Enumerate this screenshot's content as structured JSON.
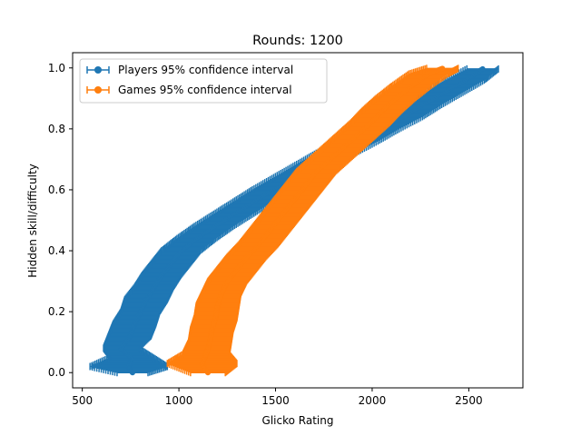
{
  "chart_data": {
    "type": "scatter",
    "title": "Rounds: 1200",
    "xlabel": "Glicko Rating",
    "ylabel": "Hidden skill/difficulty",
    "xlim": [
      450,
      2780
    ],
    "ylim": [
      -0.05,
      1.05
    ],
    "xticks": [
      500,
      1000,
      1500,
      2000,
      2500
    ],
    "yticks": [
      0.0,
      0.2,
      0.4,
      0.6,
      0.8,
      1.0
    ],
    "xtick_labels": [
      "500",
      "1000",
      "1500",
      "2000",
      "2500"
    ],
    "ytick_labels": [
      "0.0",
      "0.2",
      "0.4",
      "0.6",
      "0.8",
      "1.0"
    ],
    "grid": false,
    "legend_position": "top-left",
    "series": [
      {
        "name": "Players 95% confidence interval",
        "color": "#1f77b4",
        "marker": "circle",
        "error_bars": "horizontal",
        "points": [
          [
            760,
            0.0,
            80
          ],
          [
            740,
            0.02,
            200
          ],
          [
            755,
            0.05,
            110
          ],
          [
            700,
            0.08,
            90
          ],
          [
            745,
            0.12,
            110
          ],
          [
            770,
            0.16,
            110
          ],
          [
            800,
            0.2,
            100
          ],
          [
            830,
            0.24,
            110
          ],
          [
            870,
            0.28,
            100
          ],
          [
            910,
            0.32,
            100
          ],
          [
            960,
            0.36,
            100
          ],
          [
            1010,
            0.4,
            100
          ],
          [
            1090,
            0.44,
            100
          ],
          [
            1180,
            0.48,
            100
          ],
          [
            1280,
            0.52,
            100
          ],
          [
            1380,
            0.56,
            100
          ],
          [
            1480,
            0.6,
            100
          ],
          [
            1590,
            0.64,
            100
          ],
          [
            1700,
            0.68,
            100
          ],
          [
            1810,
            0.72,
            100
          ],
          [
            1930,
            0.76,
            100
          ],
          [
            2040,
            0.8,
            100
          ],
          [
            2160,
            0.84,
            100
          ],
          [
            2260,
            0.88,
            100
          ],
          [
            2370,
            0.92,
            100
          ],
          [
            2480,
            0.96,
            100
          ],
          [
            2580,
            1.0,
            80
          ]
        ]
      },
      {
        "name": "Games 95% confidence interval",
        "color": "#ff7f0e",
        "marker": "circle",
        "error_bars": "horizontal",
        "points": [
          [
            1150,
            0.0,
            90
          ],
          [
            1120,
            0.03,
            180
          ],
          [
            1140,
            0.06,
            120
          ],
          [
            1160,
            0.1,
            110
          ],
          [
            1170,
            0.14,
            110
          ],
          [
            1190,
            0.18,
            110
          ],
          [
            1200,
            0.22,
            110
          ],
          [
            1220,
            0.26,
            100
          ],
          [
            1250,
            0.3,
            100
          ],
          [
            1300,
            0.34,
            100
          ],
          [
            1350,
            0.38,
            100
          ],
          [
            1410,
            0.42,
            100
          ],
          [
            1460,
            0.46,
            100
          ],
          [
            1510,
            0.5,
            100
          ],
          [
            1560,
            0.54,
            100
          ],
          [
            1610,
            0.58,
            100
          ],
          [
            1660,
            0.62,
            100
          ],
          [
            1710,
            0.66,
            100
          ],
          [
            1780,
            0.7,
            100
          ],
          [
            1850,
            0.74,
            100
          ],
          [
            1920,
            0.78,
            100
          ],
          [
            1990,
            0.82,
            100
          ],
          [
            2050,
            0.86,
            100
          ],
          [
            2120,
            0.9,
            100
          ],
          [
            2200,
            0.94,
            100
          ],
          [
            2290,
            0.98,
            100
          ],
          [
            2370,
            1.0,
            80
          ]
        ]
      }
    ]
  }
}
